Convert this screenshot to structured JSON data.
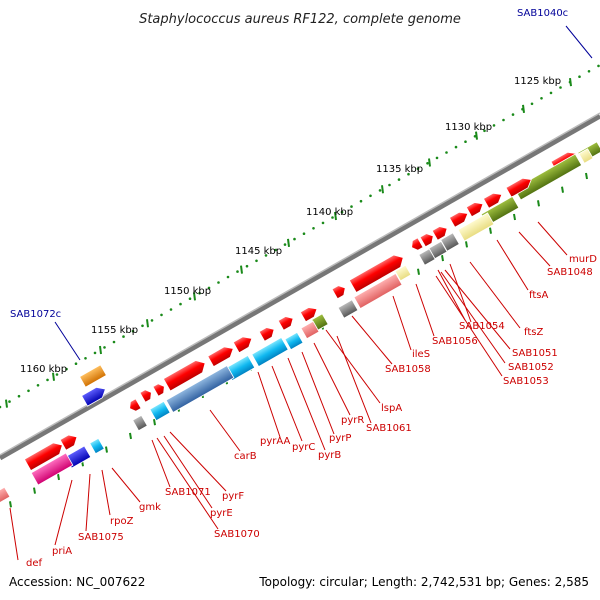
{
  "title": "Staphylococcus aureus RF122, complete genome",
  "footer": {
    "accession": "Accession: NC_007622",
    "topology": "Topology: circular; Length: 2,742,531 bp; Genes: 2,585"
  },
  "kbp_labels": [
    {
      "text": "1125 kbp"
    },
    {
      "text": "1130 kbp"
    },
    {
      "text": "1135 kbp"
    },
    {
      "text": "1140 kbp"
    },
    {
      "text": "1145 kbp"
    },
    {
      "text": "1150 kbp"
    },
    {
      "text": "1155 kbp"
    },
    {
      "text": "1160 kbp"
    }
  ],
  "outer_labels": [
    {
      "text": "SAB1040c"
    },
    {
      "text": "SAB1072c"
    }
  ],
  "gene_labels": [
    {
      "text": "murD"
    },
    {
      "text": "SAB1048"
    },
    {
      "text": "ftsA"
    },
    {
      "text": "ftsZ"
    },
    {
      "text": "SAB1054"
    },
    {
      "text": "SAB1056"
    },
    {
      "text": "SAB1051"
    },
    {
      "text": "SAB1052"
    },
    {
      "text": "SAB1053"
    },
    {
      "text": "ileS"
    },
    {
      "text": "SAB1058"
    },
    {
      "text": "lspA"
    },
    {
      "text": "pyrR"
    },
    {
      "text": "SAB1061"
    },
    {
      "text": "pyrP"
    },
    {
      "text": "pyrAA"
    },
    {
      "text": "pyrC"
    },
    {
      "text": "pyrB"
    },
    {
      "text": "carB"
    },
    {
      "text": "SAB1071"
    },
    {
      "text": "pyrF"
    },
    {
      "text": "pyrE"
    },
    {
      "text": "SAB1070"
    },
    {
      "text": "gmk"
    },
    {
      "text": "rpoZ"
    },
    {
      "text": "SAB1075"
    },
    {
      "text": "priA"
    },
    {
      "text": "def"
    }
  ]
}
